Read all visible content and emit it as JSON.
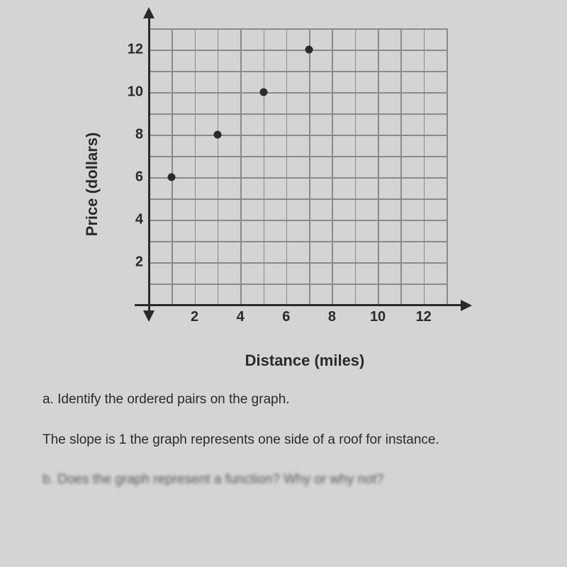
{
  "chart": {
    "type": "scatter",
    "ylabel": "Price (dollars)",
    "xlabel": "Distance (miles)",
    "label_fontsize": 22,
    "tick_fontsize": 20,
    "xlim": [
      0,
      13
    ],
    "ylim": [
      0,
      13
    ],
    "xtick_values": [
      2,
      4,
      6,
      8,
      10,
      12
    ],
    "ytick_values": [
      2,
      4,
      6,
      8,
      10,
      12
    ],
    "grid_lines_x": [
      1,
      2,
      3,
      4,
      5,
      6,
      7,
      8,
      9,
      10,
      11,
      12,
      13
    ],
    "grid_lines_y": [
      1,
      2,
      3,
      4,
      5,
      6,
      7,
      8,
      9,
      10,
      11,
      12,
      13
    ],
    "points": [
      {
        "x": 1,
        "y": 6
      },
      {
        "x": 3,
        "y": 8
      },
      {
        "x": 5,
        "y": 10
      },
      {
        "x": 7,
        "y": 12
      }
    ],
    "point_color": "#2a2a2a",
    "point_radius": 5.5,
    "grid_color": "#8a8a8a",
    "axis_color": "#2a2a2a",
    "background_color": "#d4d4d4"
  },
  "text": {
    "question_a": "a. Identify the ordered pairs on the graph.",
    "answer_a": "The slope is 1 the graph represents one side of a roof for instance.",
    "question_b_partial": "b. Does the graph represent a function? Why or why not?"
  }
}
